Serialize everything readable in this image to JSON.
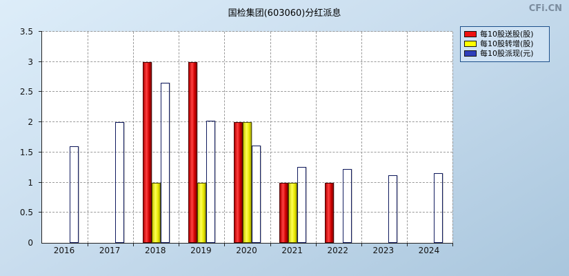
{
  "watermark": "CFi.CN",
  "chart": {
    "title": "国检集团(603060)分红派息",
    "legend": [
      {
        "label": "每10股送股(股)",
        "color": "#ee1111"
      },
      {
        "label": "每10股转增(股)",
        "color": "#ffff00"
      },
      {
        "label": "每10股派现(元)",
        "color": "#2f3fbb"
      }
    ]
  },
  "chart_data": {
    "type": "bar",
    "title": "国检集团(603060)分红派息",
    "categories": [
      "2016",
      "2017",
      "2018",
      "2019",
      "2020",
      "2021",
      "2022",
      "2023",
      "2024"
    ],
    "series": [
      {
        "id": "songgu",
        "name": "每10股送股(股)",
        "color": "#ee1111",
        "values": [
          null,
          null,
          3,
          3,
          2,
          1,
          1,
          null,
          null
        ]
      },
      {
        "id": "zhuanzeng",
        "name": "每10股转增(股)",
        "color": "#ffff00",
        "values": [
          null,
          null,
          1,
          1,
          2,
          1,
          null,
          null,
          null
        ]
      },
      {
        "id": "paixian",
        "name": "每10股派现(元)",
        "color": "#2f3fbb",
        "values": [
          1.6,
          2.0,
          2.65,
          2.02,
          1.61,
          1.26,
          1.22,
          1.12,
          1.15
        ]
      }
    ],
    "ylim": [
      0,
      3.5
    ],
    "ytick_step": 0.5,
    "yticks": [
      "0",
      "0.5",
      "1",
      "1.5",
      "2",
      "2.5",
      "3",
      "3.5"
    ],
    "grid": "dashed",
    "legend_position": "top-right",
    "background": "#ffffff"
  }
}
